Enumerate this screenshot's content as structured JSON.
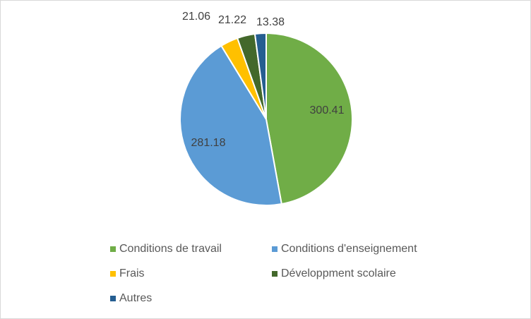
{
  "chart_data": {
    "type": "pie",
    "title": "",
    "categories": [
      "Conditions de travail",
      "Conditions d'enseignement",
      "Frais",
      "Développment scolaire",
      "Autres"
    ],
    "values": [
      300.41,
      281.18,
      21.06,
      21.22,
      13.38
    ],
    "labels": [
      "300.41",
      "281.18",
      "21.06",
      "21.22",
      "13.38"
    ],
    "colors": [
      "#70ad47",
      "#5b9bd5",
      "#ffc000",
      "#43682b",
      "#255e91"
    ],
    "start_angle_deg": 0,
    "direction": "clockwise",
    "legend_position": "bottom"
  }
}
